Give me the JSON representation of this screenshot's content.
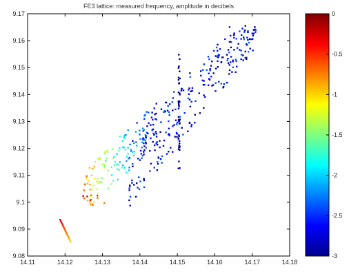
{
  "chart_data": {
    "type": "scatter",
    "title": "FE3 lattice: measured frequency, amplitude in decibels",
    "xlabel": "",
    "ylabel": "",
    "xlim": [
      14.11,
      14.18
    ],
    "ylim": [
      9.08,
      9.17
    ],
    "x_ticks": [
      "14.11",
      "14.12",
      "14.13",
      "14.14",
      "14.15",
      "14.16",
      "14.17",
      "14.18"
    ],
    "y_ticks": [
      "9.08",
      "9.09",
      "9.1",
      "9.11",
      "9.12",
      "9.13",
      "9.14",
      "9.15",
      "9.16",
      "9.17"
    ],
    "grid": false,
    "marker_size": "small-square",
    "colorbar": {
      "colormap": "jet",
      "min": -3,
      "max": 0,
      "ticks": [
        "0",
        "-0.5",
        "-1",
        "-1.5",
        "-2",
        "-2.5",
        "-3"
      ]
    },
    "colors": {
      "axis": "#000000",
      "background": "#ffffff"
    }
  }
}
